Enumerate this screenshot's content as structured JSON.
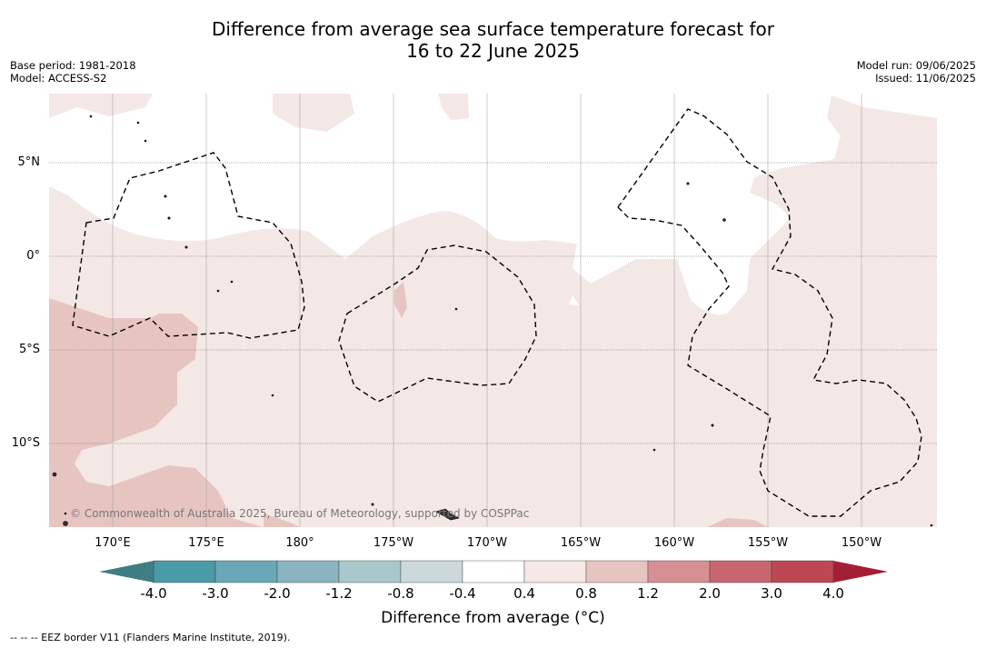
{
  "title_line1": "Difference from average sea surface temperature forecast for",
  "title_line2": "16 to 22 June 2025",
  "meta_left": [
    "Base period: 1981-2018",
    "Model: ACCESS-S2"
  ],
  "meta_right": [
    "Model run: 09/06/2025",
    "Issued: 11/06/2025"
  ],
  "lat_labels": [
    "5°N",
    "0°",
    "5°S",
    "10°S"
  ],
  "lon_labels": [
    "170°E",
    "175°E",
    "180°",
    "175°W",
    "170°W",
    "165°W",
    "160°W",
    "155°W",
    "150°W"
  ],
  "copyright": "© Commonwealth of Australia 2025, Bureau of Meteorology, supported by COSPPac",
  "colorbar": {
    "label": "Difference from average (°C)",
    "ticks": [
      "-4.0",
      "-3.0",
      "-2.0",
      "-1.2",
      "-0.8",
      "-0.4",
      "0.4",
      "0.8",
      "1.2",
      "2.0",
      "3.0",
      "4.0"
    ],
    "colors": [
      "#4a9aa8",
      "#6aa7b6",
      "#8ab5c0",
      "#a9c8cc",
      "#ccd8d9",
      "#ffffff",
      "#f5e8e6",
      "#e6c5c1",
      "#d69093",
      "#c8666f",
      "#bd4854"
    ],
    "under_color": "#3f7e84",
    "over_color": "#a21f36"
  },
  "shading": {
    "weak_warm": "#f4e8e6",
    "moderate_warm": "#e6c5c1"
  },
  "footnote": "-- -- -- EEZ border V11 (Flanders Marine Institute, 2019)."
}
